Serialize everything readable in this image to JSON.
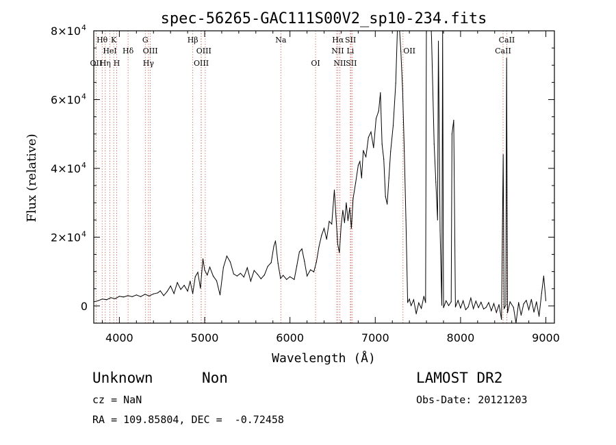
{
  "chart_data": {
    "type": "line",
    "title": "spec-56265-GAC111S00V2_sp10-234.fits",
    "xlabel": "Wavelength (Å)",
    "ylabel": "Flux (relative)",
    "xlim": [
      3700,
      9100
    ],
    "ylim": [
      -5000,
      80000
    ],
    "xticks": [
      4000,
      5000,
      6000,
      7000,
      8000,
      9000
    ],
    "x_tick_labels": [
      "4000",
      "5000",
      "6000",
      "7000",
      "8000",
      "9000"
    ],
    "yticks": [
      0,
      20000,
      40000,
      60000,
      80000
    ],
    "y_tick_labels": [
      {
        "base": "0",
        "exp": ""
      },
      {
        "base": "2×10",
        "exp": "4"
      },
      {
        "base": "4×10",
        "exp": "4"
      },
      {
        "base": "6×10",
        "exp": "4"
      },
      {
        "base": "8×10",
        "exp": "4"
      }
    ],
    "grid": false,
    "series": [
      {
        "color": "#000000",
        "points": [
          [
            3700,
            1200
          ],
          [
            3750,
            1500
          ],
          [
            3800,
            2000
          ],
          [
            3850,
            1800
          ],
          [
            3900,
            2400
          ],
          [
            3950,
            2100
          ],
          [
            4000,
            2800
          ],
          [
            4050,
            2600
          ],
          [
            4100,
            3000
          ],
          [
            4150,
            2700
          ],
          [
            4200,
            3200
          ],
          [
            4250,
            2700
          ],
          [
            4300,
            3400
          ],
          [
            4350,
            2900
          ],
          [
            4400,
            3500
          ],
          [
            4450,
            3800
          ],
          [
            4480,
            4400
          ],
          [
            4520,
            3000
          ],
          [
            4560,
            4200
          ],
          [
            4600,
            5800
          ],
          [
            4640,
            3600
          ],
          [
            4680,
            6800
          ],
          [
            4720,
            4800
          ],
          [
            4760,
            6000
          ],
          [
            4800,
            4300
          ],
          [
            4830,
            7200
          ],
          [
            4860,
            3600
          ],
          [
            4890,
            8500
          ],
          [
            4920,
            9800
          ],
          [
            4950,
            5200
          ],
          [
            4980,
            13700
          ],
          [
            5000,
            10400
          ],
          [
            5030,
            9000
          ],
          [
            5060,
            11300
          ],
          [
            5100,
            8700
          ],
          [
            5140,
            7300
          ],
          [
            5180,
            3200
          ],
          [
            5220,
            11200
          ],
          [
            5260,
            14500
          ],
          [
            5300,
            12800
          ],
          [
            5340,
            9300
          ],
          [
            5380,
            8700
          ],
          [
            5420,
            9500
          ],
          [
            5460,
            8400
          ],
          [
            5500,
            11100
          ],
          [
            5540,
            7200
          ],
          [
            5580,
            10300
          ],
          [
            5620,
            9200
          ],
          [
            5660,
            7900
          ],
          [
            5700,
            9000
          ],
          [
            5740,
            11500
          ],
          [
            5780,
            12600
          ],
          [
            5810,
            17300
          ],
          [
            5830,
            18900
          ],
          [
            5860,
            12400
          ],
          [
            5890,
            8000
          ],
          [
            5920,
            8900
          ],
          [
            5960,
            7700
          ],
          [
            6000,
            8500
          ],
          [
            6050,
            7700
          ],
          [
            6080,
            11600
          ],
          [
            6110,
            15700
          ],
          [
            6140,
            16600
          ],
          [
            6170,
            13000
          ],
          [
            6200,
            8700
          ],
          [
            6240,
            10500
          ],
          [
            6280,
            9900
          ],
          [
            6310,
            12800
          ],
          [
            6340,
            17200
          ],
          [
            6370,
            20500
          ],
          [
            6400,
            22600
          ],
          [
            6430,
            19400
          ],
          [
            6460,
            24600
          ],
          [
            6490,
            23800
          ],
          [
            6520,
            33700
          ],
          [
            6540,
            26000
          ],
          [
            6560,
            18000
          ],
          [
            6580,
            15500
          ],
          [
            6600,
            23400
          ],
          [
            6620,
            27800
          ],
          [
            6640,
            24200
          ],
          [
            6660,
            30000
          ],
          [
            6680,
            24800
          ],
          [
            6700,
            28500
          ],
          [
            6720,
            22600
          ],
          [
            6740,
            31200
          ],
          [
            6770,
            35800
          ],
          [
            6800,
            40900
          ],
          [
            6820,
            42000
          ],
          [
            6840,
            37200
          ],
          [
            6860,
            45200
          ],
          [
            6890,
            43300
          ],
          [
            6920,
            49000
          ],
          [
            6950,
            50600
          ],
          [
            6980,
            46000
          ],
          [
            7010,
            54500
          ],
          [
            7040,
            56700
          ],
          [
            7060,
            62000
          ],
          [
            7080,
            47000
          ],
          [
            7100,
            42700
          ],
          [
            7120,
            31800
          ],
          [
            7140,
            29600
          ],
          [
            7160,
            37200
          ],
          [
            7180,
            44900
          ],
          [
            7210,
            52500
          ],
          [
            7240,
            64800
          ],
          [
            7260,
            81000
          ],
          [
            7280,
            82000
          ],
          [
            7300,
            74000
          ],
          [
            7320,
            63000
          ],
          [
            7340,
            45000
          ],
          [
            7360,
            25000
          ],
          [
            7380,
            1000
          ],
          [
            7400,
            2000
          ],
          [
            7420,
            100
          ],
          [
            7450,
            1800
          ],
          [
            7480,
            -2300
          ],
          [
            7510,
            900
          ],
          [
            7540,
            -700
          ],
          [
            7570,
            2800
          ],
          [
            7590,
            1000
          ],
          [
            7600,
            90000
          ],
          [
            7640,
            90000
          ],
          [
            7660,
            78000
          ],
          [
            7690,
            47000
          ],
          [
            7710,
            36000
          ],
          [
            7730,
            25000
          ],
          [
            7740,
            77000
          ],
          [
            7760,
            22000
          ],
          [
            7780,
            200
          ],
          [
            7790,
            80000
          ],
          [
            7800,
            -500
          ],
          [
            7830,
            1500
          ],
          [
            7860,
            100
          ],
          [
            7890,
            1200
          ],
          [
            7900,
            50000
          ],
          [
            7920,
            54000
          ],
          [
            7940,
            -300
          ],
          [
            7970,
            1600
          ],
          [
            8000,
            -600
          ],
          [
            8030,
            1500
          ],
          [
            8060,
            -1100
          ],
          [
            8090,
            -300
          ],
          [
            8120,
            2300
          ],
          [
            8150,
            -800
          ],
          [
            8180,
            1400
          ],
          [
            8210,
            -500
          ],
          [
            8240,
            1100
          ],
          [
            8270,
            -900
          ],
          [
            8300,
            -400
          ],
          [
            8330,
            1000
          ],
          [
            8360,
            -1400
          ],
          [
            8390,
            700
          ],
          [
            8420,
            -1900
          ],
          [
            8450,
            400
          ],
          [
            8480,
            -3900
          ],
          [
            8500,
            44000
          ],
          [
            8510,
            -800
          ],
          [
            8530,
            200
          ],
          [
            8540,
            72000
          ],
          [
            8550,
            -2000
          ],
          [
            8580,
            1200
          ],
          [
            8620,
            -400
          ],
          [
            8650,
            -5000
          ],
          [
            8680,
            1000
          ],
          [
            8710,
            -2700
          ],
          [
            8740,
            600
          ],
          [
            8770,
            1600
          ],
          [
            8800,
            -1100
          ],
          [
            8830,
            1900
          ],
          [
            8860,
            -1800
          ],
          [
            8890,
            1200
          ],
          [
            8920,
            -3000
          ],
          [
            8950,
            3700
          ],
          [
            8975,
            8700
          ],
          [
            9000,
            1500
          ]
        ]
      }
    ],
    "line_labels": [
      {
        "text": "Hθ",
        "x": 3798,
        "row": 1,
        "lines": [
          3798
        ]
      },
      {
        "text": "K",
        "x": 3934,
        "row": 1,
        "lines": [
          3934
        ]
      },
      {
        "text": "HeI",
        "x": 3889,
        "row": 2,
        "lines": [
          3889
        ]
      },
      {
        "text": "Hδ",
        "x": 4102,
        "row": 2,
        "lines": [
          4102
        ]
      },
      {
        "text": "OII",
        "x": 3727,
        "row": 3,
        "lines": [
          3727
        ]
      },
      {
        "text": "Hη",
        "x": 3835,
        "row": 3,
        "lines": [
          3835
        ]
      },
      {
        "text": "H",
        "x": 3969,
        "row": 3,
        "lines": [
          3969
        ]
      },
      {
        "text": "G",
        "x": 4304,
        "row": 1,
        "lines": [
          4304
        ]
      },
      {
        "text": "OIII",
        "x": 4363,
        "row": 2,
        "lines": [
          4363
        ]
      },
      {
        "text": "Hγ",
        "x": 4341,
        "row": 3,
        "lines": [
          4341
        ]
      },
      {
        "text": "Hβ",
        "x": 4861,
        "row": 1,
        "lines": [
          4861
        ]
      },
      {
        "text": "OIII",
        "x": 4990,
        "row": 2,
        "lines": [
          4959,
          5007
        ]
      },
      {
        "text": "OIII",
        "x": 4960,
        "row": 3,
        "lines": [
          4959
        ]
      },
      {
        "text": "Na",
        "x": 5893,
        "row": 1,
        "lines": [
          5893
        ]
      },
      {
        "text": "OI",
        "x": 6300,
        "row": 3,
        "lines": [
          6300
        ]
      },
      {
        "text": "Hα",
        "x": 6563,
        "row": 1,
        "lines": [
          6563
        ]
      },
      {
        "text": "SII",
        "x": 6710,
        "row": 1,
        "lines": [
          6716,
          6731
        ]
      },
      {
        "text": "NII",
        "x": 6560,
        "row": 2,
        "lines": [
          6548
        ]
      },
      {
        "text": "Li",
        "x": 6708,
        "row": 2,
        "lines": [
          6708
        ]
      },
      {
        "text": "NII",
        "x": 6584,
        "row": 3,
        "lines": [
          6584
        ]
      },
      {
        "text": "SII",
        "x": 6720,
        "row": 3,
        "lines": []
      },
      {
        "text": "OII",
        "x": 7400,
        "row": 2,
        "lines": [
          7325
        ]
      },
      {
        "text": "CaII",
        "x": 8542,
        "row": 1,
        "lines": [
          8542
        ]
      },
      {
        "text": "CaII",
        "x": 8498,
        "row": 2,
        "lines": [
          8498
        ]
      }
    ]
  },
  "info": {
    "class": "Unknown",
    "subclass": "Non",
    "survey": "LAMOST DR2",
    "cz": "cz = NaN",
    "obs_date": "Obs-Date: 20121203",
    "coords": "RA = 109.85804, DEC =  -0.72458"
  }
}
